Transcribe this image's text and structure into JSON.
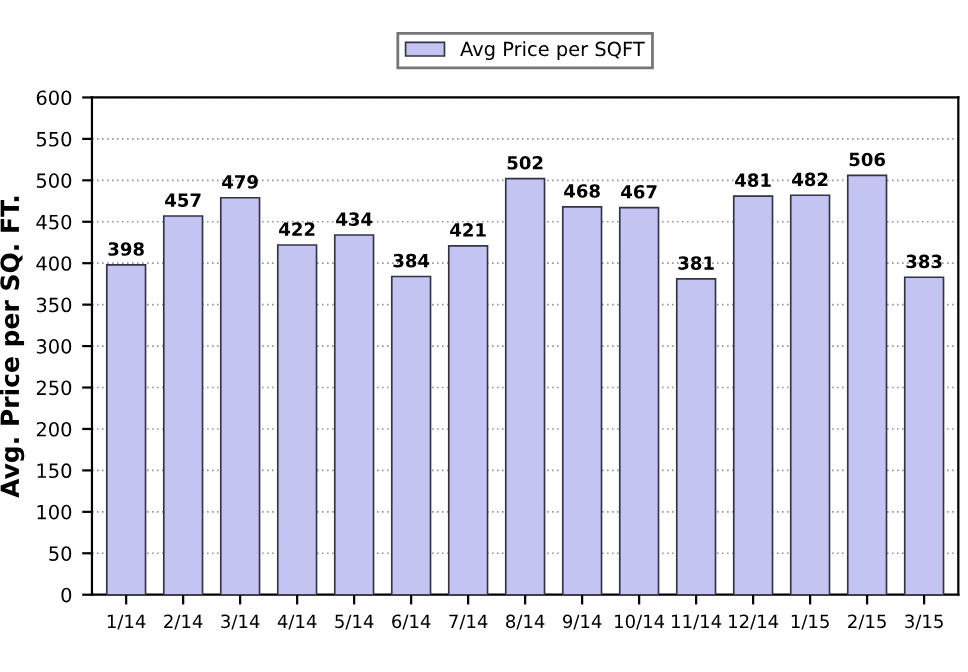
{
  "chart_data": {
    "type": "bar",
    "ylabel": "Avg. Price per SQ. FT.",
    "categories": [
      "1/14",
      "2/14",
      "3/14",
      "4/14",
      "5/14",
      "6/14",
      "7/14",
      "8/14",
      "9/14",
      "10/14",
      "11/14",
      "12/14",
      "1/15",
      "2/15",
      "3/15"
    ],
    "series": [
      {
        "name": "Avg Price per SQFT",
        "color": "#c4c4f2",
        "values": [
          398,
          457,
          479,
          422,
          434,
          384,
          421,
          502,
          468,
          467,
          381,
          481,
          482,
          506,
          383
        ]
      }
    ],
    "ylim": [
      0,
      600
    ],
    "yticks": [
      0,
      50,
      100,
      150,
      200,
      250,
      300,
      350,
      400,
      450,
      500,
      550,
      600
    ],
    "grid": "y",
    "legend": "top",
    "data_labels": true
  }
}
